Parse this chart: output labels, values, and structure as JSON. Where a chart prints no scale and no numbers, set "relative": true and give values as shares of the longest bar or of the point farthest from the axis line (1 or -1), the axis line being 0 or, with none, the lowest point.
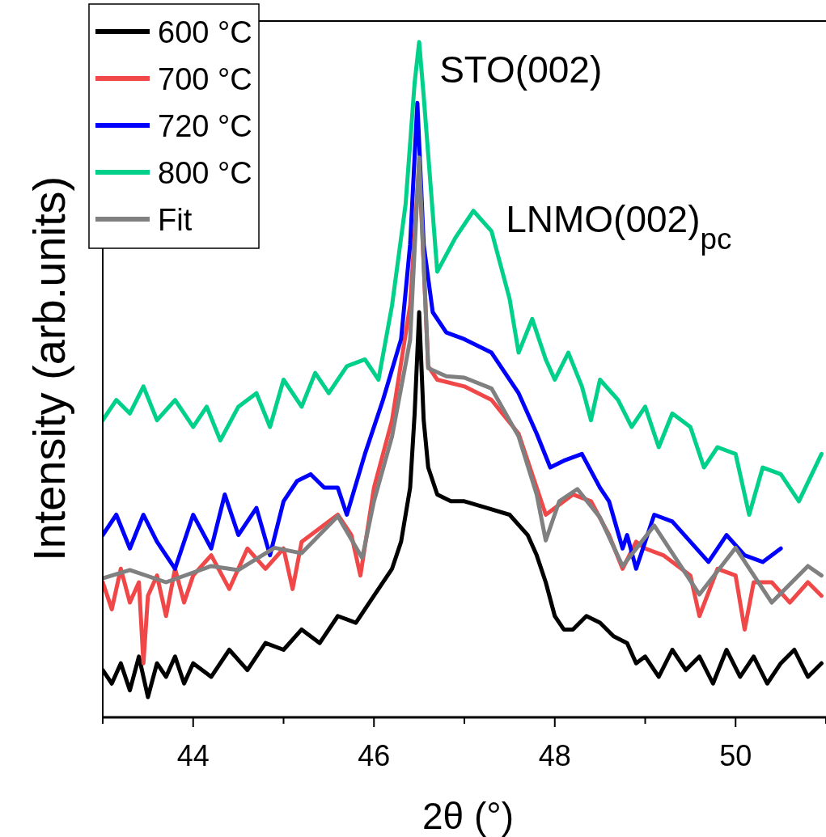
{
  "chart_data": {
    "type": "line",
    "relative": true,
    "xlabel": "2θ (°)",
    "ylabel": "Intensity (arb.units)",
    "xlim": [
      43,
      51
    ],
    "xticks": [
      {
        "value": 43,
        "label": null
      },
      44,
      {
        "value": 45,
        "label": null
      },
      46,
      {
        "value": 47,
        "label": null
      },
      48,
      {
        "value": 49,
        "label": null
      },
      50,
      {
        "value": 51,
        "label": null
      }
    ],
    "legend": "top left",
    "line_style": "solid",
    "marker": "none",
    "annotations": [
      {
        "text": "STO(002)",
        "x": 46.5,
        "y": 1.0
      },
      {
        "text": "LNMO(002)$_{pc}$",
        "x": 47.1,
        "y": 0.749
      }
    ],
    "series": [
      {
        "name": "600 °C",
        "color": "#000000",
        "x": [
          43,
          43.1,
          43.2,
          43.3,
          43.4,
          43.5,
          43.6,
          43.7,
          43.8,
          43.9,
          44,
          44.2,
          44.4,
          44.6,
          44.8,
          45,
          45.2,
          45.4,
          45.6,
          45.8,
          46,
          46.2,
          46.3,
          46.4,
          46.45,
          46.5,
          46.55,
          46.6,
          46.7,
          46.85,
          47,
          47.25,
          47.5,
          47.7,
          47.8,
          47.9,
          48,
          48.1,
          48.2,
          48.35,
          48.5,
          48.65,
          48.8,
          48.9,
          49,
          49.15,
          49.3,
          49.45,
          49.6,
          49.75,
          49.9,
          50.05,
          50.2,
          50.35,
          50.5,
          50.65,
          50.8,
          50.95
        ],
        "values": [
          0.07,
          0.05,
          0.08,
          0.04,
          0.09,
          0.03,
          0.08,
          0.06,
          0.09,
          0.05,
          0.08,
          0.06,
          0.1,
          0.07,
          0.11,
          0.1,
          0.13,
          0.11,
          0.15,
          0.14,
          0.18,
          0.22,
          0.26,
          0.34,
          0.45,
          0.6,
          0.44,
          0.37,
          0.33,
          0.32,
          0.32,
          0.31,
          0.3,
          0.27,
          0.24,
          0.2,
          0.15,
          0.13,
          0.13,
          0.15,
          0.14,
          0.12,
          0.11,
          0.08,
          0.09,
          0.06,
          0.1,
          0.07,
          0.09,
          0.05,
          0.1,
          0.06,
          0.09,
          0.05,
          0.08,
          0.1,
          0.06,
          0.08
        ]
      },
      {
        "name": "700 °C",
        "color": "#f04848",
        "x": [
          43,
          43.1,
          43.2,
          43.3,
          43.4,
          43.45,
          43.5,
          43.6,
          43.7,
          43.8,
          43.9,
          44,
          44.2,
          44.4,
          44.6,
          44.8,
          45,
          45.1,
          45.2,
          45.4,
          45.6,
          45.75,
          45.85,
          46,
          46.2,
          46.4,
          46.5,
          46.6,
          46.7,
          47,
          47.3,
          47.6,
          47.8,
          47.9,
          48,
          48.2,
          48.4,
          48.6,
          48.75,
          48.9,
          49,
          49.2,
          49.4,
          49.5,
          49.6,
          49.8,
          50,
          50.1,
          50.2,
          50.4,
          50.6,
          50.8,
          50.95
        ],
        "values": [
          0.2,
          0.16,
          0.22,
          0.17,
          0.2,
          0.08,
          0.18,
          0.21,
          0.15,
          0.22,
          0.17,
          0.21,
          0.24,
          0.19,
          0.25,
          0.22,
          0.25,
          0.19,
          0.26,
          0.28,
          0.3,
          0.27,
          0.21,
          0.34,
          0.44,
          0.61,
          0.82,
          0.52,
          0.5,
          0.49,
          0.47,
          0.42,
          0.34,
          0.3,
          0.31,
          0.33,
          0.32,
          0.27,
          0.22,
          0.26,
          0.25,
          0.24,
          0.22,
          0.21,
          0.15,
          0.22,
          0.21,
          0.13,
          0.2,
          0.2,
          0.17,
          0.2,
          0.18
        ]
      },
      {
        "name": "720 °C",
        "color": "#0000ff",
        "x": [
          43,
          43.15,
          43.3,
          43.45,
          43.6,
          43.8,
          44,
          44.2,
          44.35,
          44.5,
          44.7,
          44.85,
          45,
          45.15,
          45.3,
          45.45,
          45.6,
          45.7,
          45.9,
          46.1,
          46.3,
          46.4,
          46.48,
          46.55,
          46.65,
          46.8,
          47,
          47.3,
          47.6,
          47.8,
          47.95,
          48.1,
          48.3,
          48.5,
          48.6,
          48.75,
          48.8,
          48.9,
          49.1,
          49.3,
          49.5,
          49.7,
          49.9,
          50.1,
          50.3,
          50.5
        ],
        "values": [
          0.27,
          0.3,
          0.25,
          0.3,
          0.26,
          0.22,
          0.3,
          0.25,
          0.33,
          0.27,
          0.31,
          0.24,
          0.32,
          0.35,
          0.36,
          0.34,
          0.34,
          0.3,
          0.39,
          0.47,
          0.56,
          0.7,
          0.91,
          0.7,
          0.6,
          0.57,
          0.56,
          0.54,
          0.48,
          0.42,
          0.37,
          0.38,
          0.39,
          0.34,
          0.32,
          0.25,
          0.27,
          0.22,
          0.3,
          0.29,
          0.26,
          0.23,
          0.27,
          0.24,
          0.23,
          0.25
        ]
      },
      {
        "name": "800 °C",
        "color": "#00d08a",
        "x": [
          43,
          43.15,
          43.3,
          43.45,
          43.6,
          43.8,
          44,
          44.15,
          44.3,
          44.5,
          44.7,
          44.85,
          45,
          45.2,
          45.35,
          45.5,
          45.7,
          45.9,
          46.05,
          46.2,
          46.35,
          46.45,
          46.5,
          46.55,
          46.7,
          46.9,
          47.1,
          47.3,
          47.5,
          47.6,
          47.75,
          47.9,
          48,
          48.15,
          48.3,
          48.4,
          48.5,
          48.7,
          48.85,
          49,
          49.15,
          49.3,
          49.5,
          49.65,
          49.8,
          50,
          50.15,
          50.3,
          50.5,
          50.7,
          50.95
        ],
        "values": [
          0.44,
          0.47,
          0.45,
          0.49,
          0.44,
          0.47,
          0.43,
          0.46,
          0.41,
          0.46,
          0.48,
          0.43,
          0.5,
          0.46,
          0.51,
          0.48,
          0.52,
          0.53,
          0.5,
          0.61,
          0.76,
          0.94,
          1.0,
          0.92,
          0.66,
          0.71,
          0.75,
          0.72,
          0.62,
          0.54,
          0.59,
          0.53,
          0.5,
          0.54,
          0.49,
          0.44,
          0.5,
          0.47,
          0.43,
          0.46,
          0.4,
          0.45,
          0.43,
          0.37,
          0.4,
          0.39,
          0.3,
          0.37,
          0.36,
          0.32,
          0.39
        ]
      },
      {
        "name": "Fit",
        "color": "#808080",
        "x": [
          43,
          43.3,
          43.7,
          44.2,
          44.5,
          44.9,
          45.2,
          45.6,
          45.87,
          46,
          46.2,
          46.4,
          46.5,
          46.6,
          46.8,
          47,
          47.3,
          47.6,
          47.8,
          47.9,
          48.05,
          48.25,
          48.5,
          48.75,
          49.1,
          49.6,
          50,
          50.4,
          50.8,
          50.95
        ],
        "values": [
          0.206,
          0.218,
          0.2,
          0.224,
          0.218,
          0.251,
          0.243,
          0.298,
          0.236,
          0.32,
          0.416,
          0.559,
          0.829,
          0.517,
          0.505,
          0.503,
          0.487,
          0.416,
          0.33,
          0.262,
          0.32,
          0.338,
          0.296,
          0.224,
          0.284,
          0.182,
          0.251,
          0.17,
          0.224,
          0.21
        ]
      }
    ]
  }
}
